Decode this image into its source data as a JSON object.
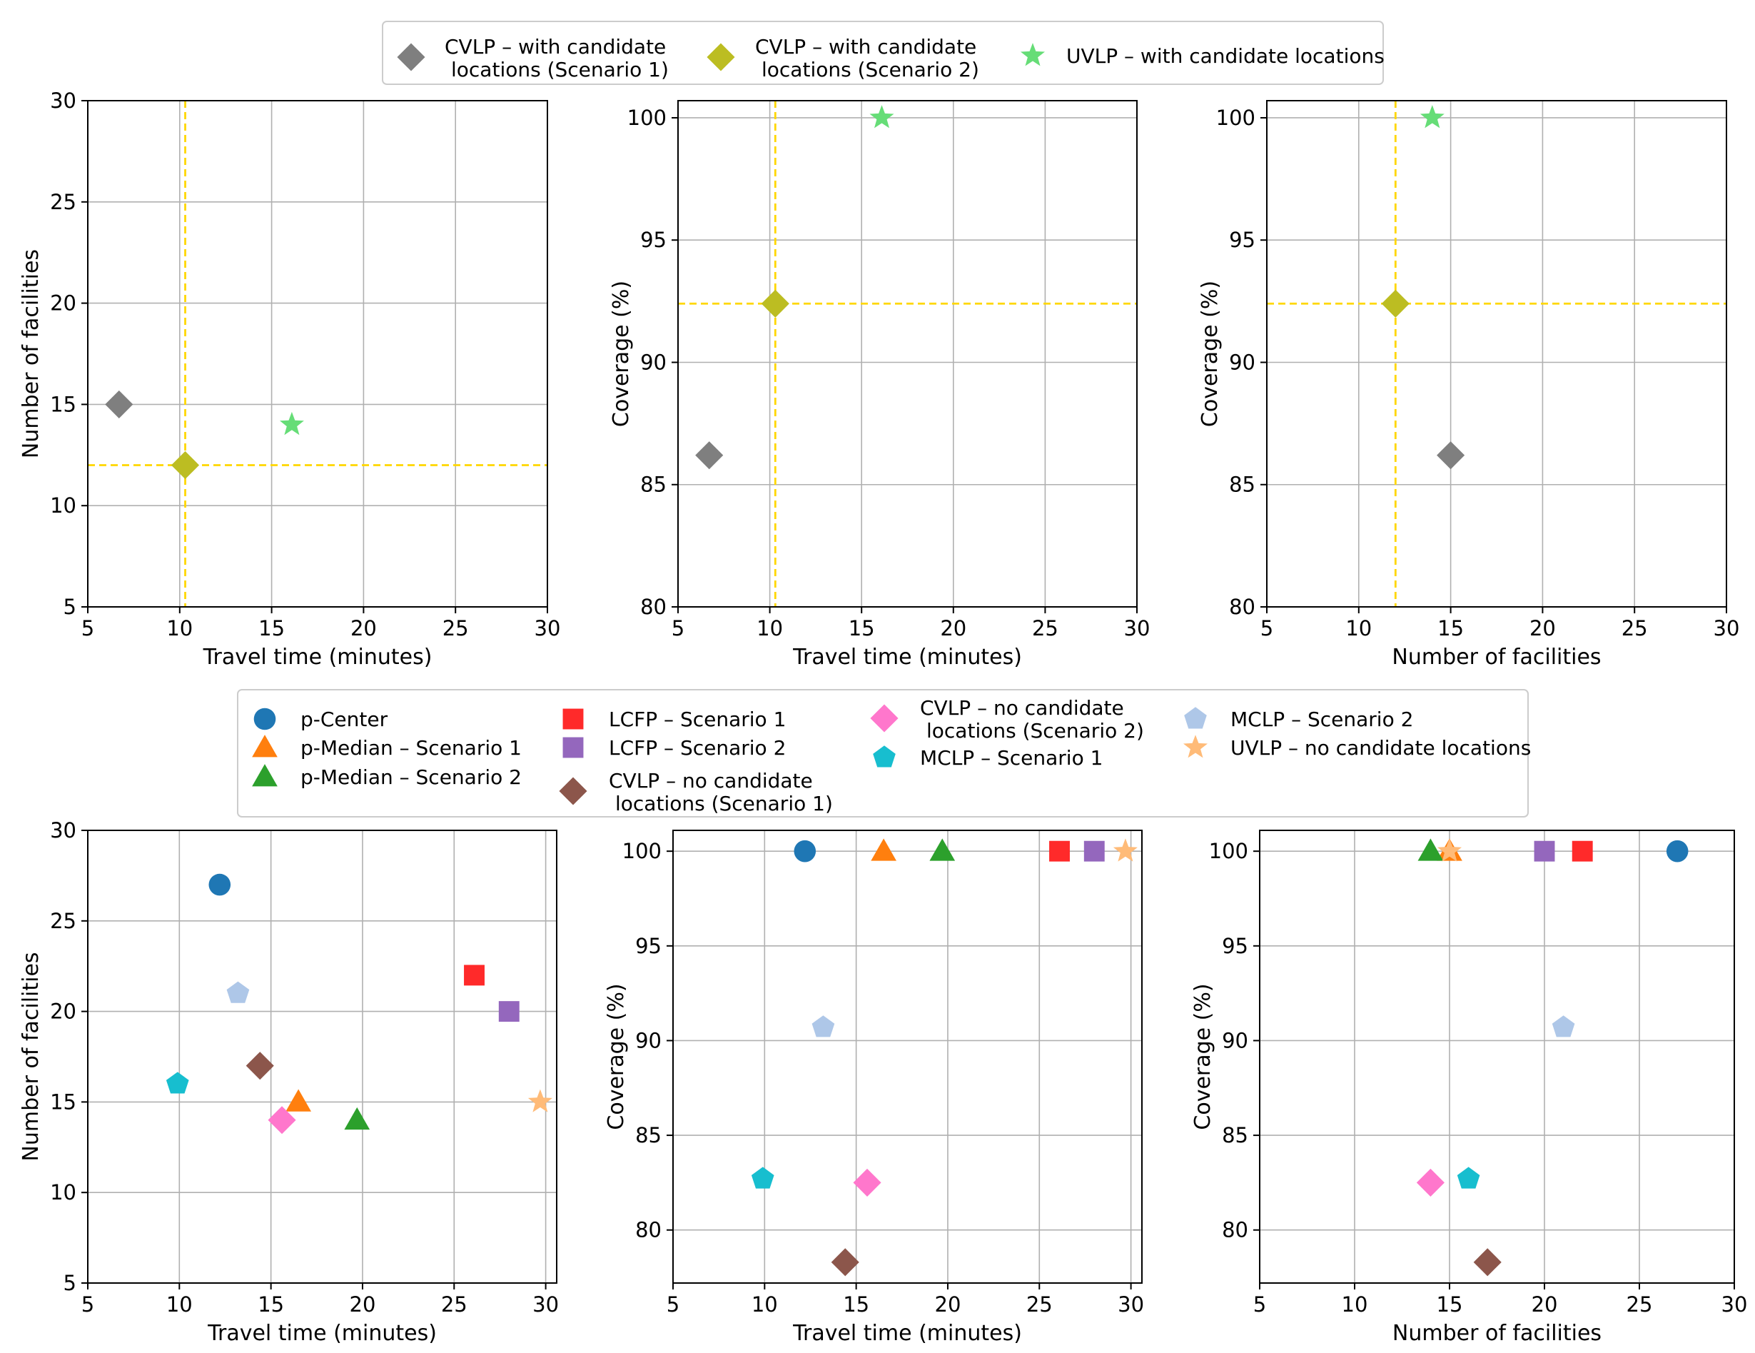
{
  "top_legend": {
    "items": [
      {
        "label": "CVLP – with candidate\nlocations (Scenario 1)",
        "marker": "diamond",
        "color": "#7f7f7f"
      },
      {
        "label": "CVLP – with candidate\nlocations (Scenario 2)",
        "marker": "diamond",
        "color": "#bcbd22"
      },
      {
        "label": "UVLP – with candidate locations",
        "marker": "star",
        "color": "#66dd77"
      }
    ]
  },
  "bottom_legend": {
    "items": [
      {
        "label": "p-Center",
        "marker": "circle",
        "color": "#1f77b4"
      },
      {
        "label": "p-Median – Scenario 1",
        "marker": "triangle",
        "color": "#ff7f0e"
      },
      {
        "label": "p-Median – Scenario 2",
        "marker": "triangle",
        "color": "#2ca02c"
      },
      {
        "label": "LCFP – Scenario 1",
        "marker": "square",
        "color": "#ff2a2a"
      },
      {
        "label": "LCFP – Scenario 2",
        "marker": "square",
        "color": "#9467bd"
      },
      {
        "label": "CVLP – no candidate\nlocations (Scenario 1)",
        "marker": "diamond",
        "color": "#8c564b"
      },
      {
        "label": "CVLP – no candidate\nlocations (Scenario 2)",
        "marker": "diamond",
        "color": "#ff77cc"
      },
      {
        "label": "MCLP – Scenario 1",
        "marker": "pentagon",
        "color": "#17becf"
      },
      {
        "label": "MCLP – Scenario 2",
        "marker": "pentagon",
        "color": "#aec7e8"
      },
      {
        "label": "UVLP – no candidate locations",
        "marker": "star",
        "color": "#ffbb78"
      }
    ]
  },
  "chart_data": [
    {
      "type": "scatter",
      "id": "top-left",
      "xlabel": "Travel time (minutes)",
      "ylabel": "Number of facilities",
      "xlim": [
        5,
        30
      ],
      "ylim": [
        5,
        30
      ],
      "xticks": [
        5,
        10,
        15,
        20,
        25,
        30
      ],
      "yticks": [
        5,
        10,
        15,
        20,
        25,
        30
      ],
      "hline": 12,
      "vline": 10.3,
      "ref_color": "#ffd700",
      "points": [
        {
          "name": "CVLP – with candidate locations (Scenario 1)",
          "x": 6.7,
          "y": 15,
          "marker": "diamond",
          "color": "#7f7f7f"
        },
        {
          "name": "CVLP – with candidate locations (Scenario 2)",
          "x": 10.3,
          "y": 12,
          "marker": "diamond",
          "color": "#bcbd22"
        },
        {
          "name": "UVLP – with candidate locations",
          "x": 16.1,
          "y": 14,
          "marker": "star",
          "color": "#66dd77"
        }
      ]
    },
    {
      "type": "scatter",
      "id": "top-middle",
      "xlabel": "Travel time (minutes)",
      "ylabel": "Coverage (%)",
      "xlim": [
        5,
        30
      ],
      "ylim": [
        80,
        100.7
      ],
      "xticks": [
        5,
        10,
        15,
        20,
        25,
        30
      ],
      "yticks": [
        80,
        85,
        90,
        95,
        100
      ],
      "hline": 92.4,
      "vline": 10.3,
      "ref_color": "#ffd700",
      "points": [
        {
          "name": "CVLP – with candidate locations (Scenario 1)",
          "x": 6.7,
          "y": 86.2,
          "marker": "diamond",
          "color": "#7f7f7f"
        },
        {
          "name": "CVLP – with candidate locations (Scenario 2)",
          "x": 10.3,
          "y": 92.4,
          "marker": "diamond",
          "color": "#bcbd22"
        },
        {
          "name": "UVLP – with candidate locations",
          "x": 16.1,
          "y": 100,
          "marker": "star",
          "color": "#66dd77"
        }
      ]
    },
    {
      "type": "scatter",
      "id": "top-right",
      "xlabel": "Number of facilities",
      "ylabel": "Coverage (%)",
      "xlim": [
        5,
        30
      ],
      "ylim": [
        80,
        100.7
      ],
      "xticks": [
        5,
        10,
        15,
        20,
        25,
        30
      ],
      "yticks": [
        80,
        85,
        90,
        95,
        100
      ],
      "hline": 92.4,
      "vline": 12,
      "ref_color": "#ffd700",
      "points": [
        {
          "name": "CVLP – with candidate locations (Scenario 1)",
          "x": 15,
          "y": 86.2,
          "marker": "diamond",
          "color": "#7f7f7f"
        },
        {
          "name": "CVLP – with candidate locations (Scenario 2)",
          "x": 12,
          "y": 92.4,
          "marker": "diamond",
          "color": "#bcbd22"
        },
        {
          "name": "UVLP – with candidate locations",
          "x": 14,
          "y": 100,
          "marker": "star",
          "color": "#66dd77"
        }
      ]
    },
    {
      "type": "scatter",
      "id": "bottom-left",
      "xlabel": "Travel time (minutes)",
      "ylabel": "Number of facilities",
      "xlim": [
        5,
        30.6
      ],
      "ylim": [
        5,
        30
      ],
      "xticks": [
        5,
        10,
        15,
        20,
        25,
        30
      ],
      "yticks": [
        5,
        10,
        15,
        20,
        25,
        30
      ],
      "points": [
        {
          "name": "p-Center",
          "x": 12.2,
          "y": 27,
          "marker": "circle",
          "color": "#1f77b4"
        },
        {
          "name": "p-Median – Scenario 1",
          "x": 16.5,
          "y": 15,
          "marker": "triangle",
          "color": "#ff7f0e"
        },
        {
          "name": "p-Median – Scenario 2",
          "x": 19.7,
          "y": 14,
          "marker": "triangle",
          "color": "#2ca02c"
        },
        {
          "name": "LCFP – Scenario 1",
          "x": 26.1,
          "y": 22,
          "marker": "square",
          "color": "#ff2a2a"
        },
        {
          "name": "LCFP – Scenario 2",
          "x": 28.0,
          "y": 20,
          "marker": "square",
          "color": "#9467bd"
        },
        {
          "name": "CVLP – no candidate locations (Scenario 1)",
          "x": 14.4,
          "y": 17,
          "marker": "diamond",
          "color": "#8c564b"
        },
        {
          "name": "CVLP – no candidate locations (Scenario 2)",
          "x": 15.6,
          "y": 14,
          "marker": "diamond",
          "color": "#ff77cc"
        },
        {
          "name": "MCLP – Scenario 1",
          "x": 9.9,
          "y": 16,
          "marker": "pentagon",
          "color": "#17becf"
        },
        {
          "name": "MCLP – Scenario 2",
          "x": 13.2,
          "y": 21,
          "marker": "pentagon",
          "color": "#aec7e8"
        },
        {
          "name": "UVLP – no candidate locations",
          "x": 29.7,
          "y": 15,
          "marker": "star",
          "color": "#ffbb78"
        }
      ]
    },
    {
      "type": "scatter",
      "id": "bottom-middle",
      "xlabel": "Travel time (minutes)",
      "ylabel": "Coverage (%)",
      "xlim": [
        5,
        30.6
      ],
      "ylim": [
        77.2,
        101.1
      ],
      "xticks": [
        5,
        10,
        15,
        20,
        25,
        30
      ],
      "yticks": [
        80,
        85,
        90,
        95,
        100
      ],
      "points": [
        {
          "name": "p-Center",
          "x": 12.2,
          "y": 100,
          "marker": "circle",
          "color": "#1f77b4"
        },
        {
          "name": "p-Median – Scenario 1",
          "x": 16.5,
          "y": 100,
          "marker": "triangle",
          "color": "#ff7f0e"
        },
        {
          "name": "p-Median – Scenario 2",
          "x": 19.7,
          "y": 100,
          "marker": "triangle",
          "color": "#2ca02c"
        },
        {
          "name": "LCFP – Scenario 1",
          "x": 26.1,
          "y": 100,
          "marker": "square",
          "color": "#ff2a2a"
        },
        {
          "name": "LCFP – Scenario 2",
          "x": 28.0,
          "y": 100,
          "marker": "square",
          "color": "#9467bd"
        },
        {
          "name": "CVLP – no candidate locations (Scenario 1)",
          "x": 14.4,
          "y": 78.3,
          "marker": "diamond",
          "color": "#8c564b"
        },
        {
          "name": "CVLP – no candidate locations (Scenario 2)",
          "x": 15.6,
          "y": 82.5,
          "marker": "diamond",
          "color": "#ff77cc"
        },
        {
          "name": "MCLP – Scenario 1",
          "x": 9.9,
          "y": 82.7,
          "marker": "pentagon",
          "color": "#17becf"
        },
        {
          "name": "MCLP – Scenario 2",
          "x": 13.2,
          "y": 90.7,
          "marker": "pentagon",
          "color": "#aec7e8"
        },
        {
          "name": "UVLP – no candidate locations",
          "x": 29.7,
          "y": 100,
          "marker": "star",
          "color": "#ffbb78"
        }
      ]
    },
    {
      "type": "scatter",
      "id": "bottom-right",
      "xlabel": "Number of facilities",
      "ylabel": "Coverage (%)",
      "xlim": [
        5,
        30
      ],
      "ylim": [
        77.2,
        101.1
      ],
      "xticks": [
        5,
        10,
        15,
        20,
        25,
        30
      ],
      "yticks": [
        80,
        85,
        90,
        95,
        100
      ],
      "points": [
        {
          "name": "p-Center",
          "x": 27,
          "y": 100,
          "marker": "circle",
          "color": "#1f77b4"
        },
        {
          "name": "p-Median – Scenario 1",
          "x": 15,
          "y": 100,
          "marker": "triangle",
          "color": "#ff7f0e"
        },
        {
          "name": "p-Median – Scenario 2",
          "x": 14,
          "y": 100,
          "marker": "triangle",
          "color": "#2ca02c"
        },
        {
          "name": "LCFP – Scenario 1",
          "x": 22,
          "y": 100,
          "marker": "square",
          "color": "#ff2a2a"
        },
        {
          "name": "LCFP – Scenario 2",
          "x": 20,
          "y": 100,
          "marker": "square",
          "color": "#9467bd"
        },
        {
          "name": "CVLP – no candidate locations (Scenario 1)",
          "x": 17,
          "y": 78.3,
          "marker": "diamond",
          "color": "#8c564b"
        },
        {
          "name": "CVLP – no candidate locations (Scenario 2)",
          "x": 14,
          "y": 82.5,
          "marker": "diamond",
          "color": "#ff77cc"
        },
        {
          "name": "MCLP – Scenario 1",
          "x": 16,
          "y": 82.7,
          "marker": "pentagon",
          "color": "#17becf"
        },
        {
          "name": "MCLP – Scenario 2",
          "x": 21,
          "y": 90.7,
          "marker": "pentagon",
          "color": "#aec7e8"
        },
        {
          "name": "UVLP – no candidate locations",
          "x": 15,
          "y": 100,
          "marker": "star",
          "color": "#ffbb78"
        }
      ]
    }
  ]
}
